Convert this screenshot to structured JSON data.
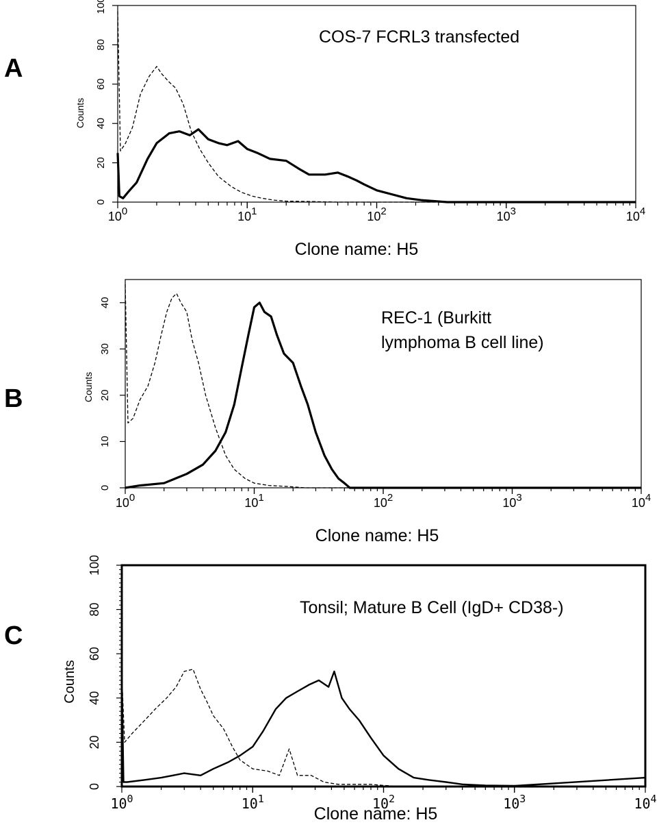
{
  "chart_data": [
    {
      "type": "line",
      "panel": "A",
      "annotation": "COS-7 FCRL3 transfected",
      "xlabel": "Clone name: H5",
      "ylabel": "Counts",
      "x_scale": "log",
      "xlim": [
        1,
        10000
      ],
      "ylim": [
        0,
        100
      ],
      "x_ticks": [
        {
          "base": "10",
          "exp": "0"
        },
        {
          "base": "10",
          "exp": "1"
        },
        {
          "base": "10",
          "exp": "2"
        },
        {
          "base": "10",
          "exp": "3"
        },
        {
          "base": "10",
          "exp": "4"
        }
      ],
      "y_ticks": [
        "0",
        "20",
        "40",
        "60",
        "80",
        "100"
      ],
      "series": [
        {
          "style": "dashed",
          "x": [
            1,
            1.05,
            1.15,
            1.3,
            1.5,
            1.75,
            2.0,
            2.2,
            2.5,
            2.8,
            3.2,
            3.7,
            4.3,
            5.0,
            6.0,
            7.5,
            9.0,
            11,
            13,
            16,
            20,
            30,
            50,
            100,
            10000
          ],
          "y": [
            97,
            26,
            30,
            38,
            55,
            64,
            69,
            65,
            61,
            58,
            50,
            36,
            27,
            20,
            13,
            8,
            5,
            3,
            2,
            1,
            0.5,
            0.3,
            0,
            0,
            0
          ]
        },
        {
          "style": "solid",
          "x": [
            1,
            1.03,
            1.1,
            1.2,
            1.4,
            1.7,
            2.0,
            2.5,
            3.0,
            3.6,
            4.2,
            5.0,
            6.0,
            7.0,
            8.5,
            10,
            12,
            15,
            20,
            25,
            30,
            40,
            50,
            60,
            70,
            80,
            100,
            130,
            170,
            220,
            280,
            350,
            10000
          ],
          "y": [
            25,
            3,
            2,
            5,
            10,
            22,
            30,
            35,
            36,
            34,
            37,
            32,
            30,
            29,
            31,
            27,
            25,
            22,
            21,
            17,
            14,
            14,
            15,
            13,
            11,
            9,
            6,
            4,
            2,
            1,
            0.5,
            0,
            0
          ]
        }
      ]
    },
    {
      "type": "line",
      "panel": "B",
      "annotation": "REC-1 (Burkitt lymphoma B cell line)",
      "annotation_lines": [
        "REC-1 (Burkitt",
        "lymphoma B cell line)"
      ],
      "xlabel": "Clone name: H5",
      "ylabel": "Counts",
      "x_scale": "log",
      "xlim": [
        1,
        10000
      ],
      "ylim": [
        0,
        45
      ],
      "x_ticks": [
        {
          "base": "10",
          "exp": "0"
        },
        {
          "base": "10",
          "exp": "1"
        },
        {
          "base": "10",
          "exp": "2"
        },
        {
          "base": "10",
          "exp": "3"
        },
        {
          "base": "10",
          "exp": "4"
        }
      ],
      "y_ticks": [
        "0",
        "10",
        "20",
        "30",
        "40"
      ],
      "series": [
        {
          "style": "dashed",
          "x": [
            1,
            1.05,
            1.15,
            1.3,
            1.5,
            1.7,
            1.9,
            2.1,
            2.3,
            2.5,
            2.7,
            3.0,
            3.3,
            3.7,
            4.2,
            5.0,
            6.0,
            7.0,
            8.5,
            10,
            13,
            18,
            25,
            40,
            10000
          ],
          "y": [
            44,
            14,
            15,
            19,
            22,
            27,
            33,
            38,
            41,
            42,
            40,
            38,
            32,
            27,
            20,
            13,
            7,
            4,
            2,
            1,
            0.5,
            0.3,
            0,
            0,
            0
          ]
        },
        {
          "style": "solid",
          "x": [
            1,
            1.3,
            2.0,
            3.0,
            4.0,
            5.0,
            6.0,
            7.0,
            8.0,
            9.0,
            10,
            11,
            12,
            13.5,
            15,
            17,
            20,
            23,
            26,
            30,
            35,
            40,
            45,
            50,
            55,
            10000
          ],
          "y": [
            0,
            0.5,
            1,
            3,
            5,
            8,
            12,
            18,
            26,
            33,
            39,
            40,
            38,
            37,
            33,
            29,
            27,
            22,
            18,
            12,
            7,
            4,
            2,
            1,
            0,
            0
          ]
        }
      ]
    },
    {
      "type": "line",
      "panel": "C",
      "annotation": "Tonsil; Mature B Cell (IgD+ CD38-)",
      "xlabel": "Clone name: H5",
      "ylabel": "Counts",
      "x_scale": "log",
      "xlim": [
        1,
        10000
      ],
      "ylim": [
        0,
        100
      ],
      "x_ticks": [
        {
          "base": "10",
          "exp": "0"
        },
        {
          "base": "10",
          "exp": "1"
        },
        {
          "base": "10",
          "exp": "2"
        },
        {
          "base": "10",
          "exp": "3"
        },
        {
          "base": "10",
          "exp": "4"
        }
      ],
      "y_ticks": [
        "0",
        "20",
        "40",
        "60",
        "80",
        "100"
      ],
      "series": [
        {
          "style": "dashed",
          "x": [
            1,
            1.05,
            1.2,
            1.5,
            1.8,
            2.2,
            2.6,
            3.0,
            3.5,
            4.0,
            4.5,
            5.0,
            6.0,
            7.0,
            8.0,
            10,
            13,
            16,
            19,
            22,
            28,
            35,
            45,
            60,
            80,
            100,
            140,
            10000
          ],
          "y": [
            50,
            20,
            24,
            30,
            35,
            40,
            45,
            52,
            53,
            44,
            38,
            32,
            26,
            18,
            12,
            8,
            7,
            5,
            17,
            5,
            5,
            2,
            1,
            1,
            1,
            0.5,
            0,
            0
          ]
        },
        {
          "style": "solid",
          "x": [
            1,
            1.03,
            1.1,
            1.5,
            2.0,
            3.0,
            4.0,
            5.0,
            6.5,
            8.0,
            10,
            12,
            15,
            18,
            22,
            27,
            32,
            38,
            42,
            48,
            55,
            65,
            80,
            100,
            130,
            170,
            220,
            300,
            400,
            600,
            1000,
            10000
          ],
          "y": [
            50,
            2,
            2,
            3,
            4,
            6,
            5,
            8,
            11,
            14,
            18,
            25,
            35,
            40,
            43,
            46,
            48,
            45,
            52,
            40,
            35,
            30,
            22,
            14,
            8,
            4,
            3,
            2,
            1,
            0.5,
            0.3,
            4
          ]
        }
      ]
    }
  ]
}
